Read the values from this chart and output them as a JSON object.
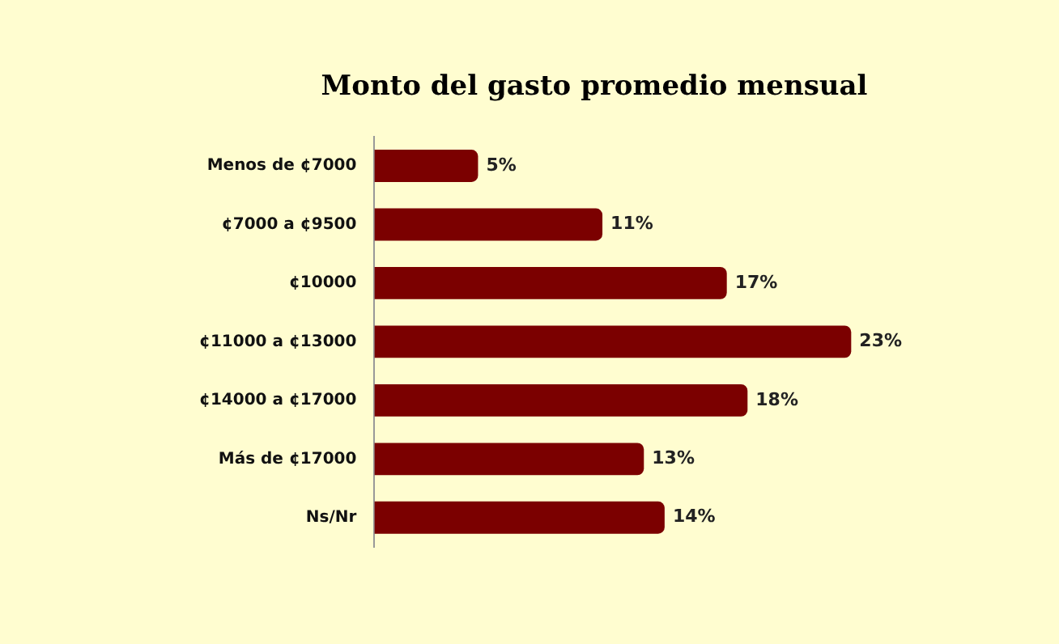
{
  "chart_data": {
    "type": "bar",
    "orientation": "horizontal",
    "title": "Monto del gasto promedio mensual",
    "categories": [
      "Menos de ¢7000",
      "¢7000 a ¢9500",
      "¢10000",
      "¢11000 a ¢13000",
      "¢14000 a ¢17000",
      "Más de ¢17000",
      "Ns/Nr"
    ],
    "values": [
      5,
      11,
      17,
      23,
      18,
      13,
      14
    ],
    "value_labels": [
      "5%",
      "11%",
      "17%",
      "23%",
      "18%",
      "13%",
      "14%"
    ],
    "color": "#7b0000",
    "legend": false
  }
}
